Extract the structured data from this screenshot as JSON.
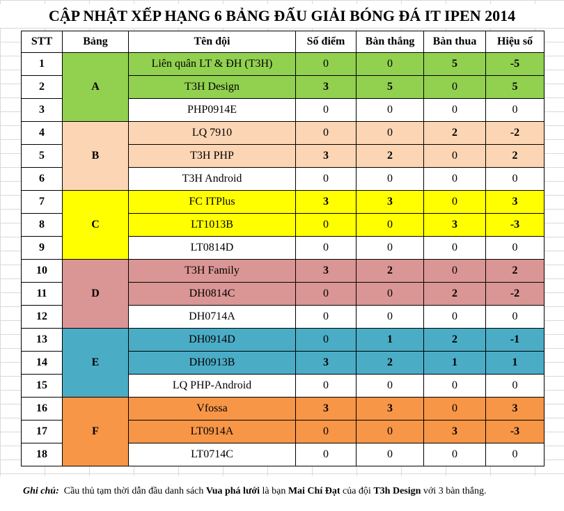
{
  "title": "CẬP NHẬT XẾP HẠNG 6 BẢNG ĐẤU GIẢI BÓNG ĐÁ IT IPEN 2014",
  "headers": [
    "STT",
    "Bảng",
    "Tên đội",
    "Số điểm",
    "Bàn thắng",
    "Bàn thua",
    "Hiệu số"
  ],
  "groups": [
    {
      "name": "A",
      "color": "#92d050",
      "rows": [
        {
          "stt": "1",
          "team": "Liên quân LT & ĐH (T3H)",
          "points": "0",
          "scored": "0",
          "conceded": "5",
          "diff": "-5"
        },
        {
          "stt": "2",
          "team": "T3H Design",
          "points": "3",
          "scored": "5",
          "conceded": "0",
          "diff": "5"
        },
        {
          "stt": "3",
          "team": "PHP0914E",
          "points": "0",
          "scored": "0",
          "conceded": "0",
          "diff": "0"
        }
      ]
    },
    {
      "name": "B",
      "color": "#fcd5b4",
      "rows": [
        {
          "stt": "4",
          "team": "LQ 7910",
          "points": "0",
          "scored": "0",
          "conceded": "2",
          "diff": "-2"
        },
        {
          "stt": "5",
          "team": "T3H PHP",
          "points": "3",
          "scored": "2",
          "conceded": "0",
          "diff": "2"
        },
        {
          "stt": "6",
          "team": "T3H Android",
          "points": "0",
          "scored": "0",
          "conceded": "0",
          "diff": "0"
        }
      ]
    },
    {
      "name": "C",
      "color": "#ffff00",
      "rows": [
        {
          "stt": "7",
          "team": "FC ITPlus",
          "points": "3",
          "scored": "3",
          "conceded": "0",
          "diff": "3"
        },
        {
          "stt": "8",
          "team": "LT1013B",
          "points": "0",
          "scored": "0",
          "conceded": "3",
          "diff": "-3"
        },
        {
          "stt": "9",
          "team": "LT0814D",
          "points": "0",
          "scored": "0",
          "conceded": "0",
          "diff": "0"
        }
      ]
    },
    {
      "name": "D",
      "color": "#da9694",
      "rows": [
        {
          "stt": "10",
          "team": "T3H Family",
          "points": "3",
          "scored": "2",
          "conceded": "0",
          "diff": "2"
        },
        {
          "stt": "11",
          "team": "DH0814C",
          "points": "0",
          "scored": "0",
          "conceded": "2",
          "diff": "-2"
        },
        {
          "stt": "12",
          "team": "DH0714A",
          "points": "0",
          "scored": "0",
          "conceded": "0",
          "diff": "0"
        }
      ]
    },
    {
      "name": "E",
      "color": "#4bacc6",
      "rows": [
        {
          "stt": "13",
          "team": "DH0914D",
          "points": "0",
          "scored": "1",
          "conceded": "2",
          "diff": "-1"
        },
        {
          "stt": "14",
          "team": "DH0913B",
          "points": "3",
          "scored": "2",
          "conceded": "1",
          "diff": "1"
        },
        {
          "stt": "15",
          "team": "LQ PHP-Android",
          "points": "0",
          "scored": "0",
          "conceded": "0",
          "diff": "0"
        }
      ]
    },
    {
      "name": "F",
      "color": "#f79646",
      "rows": [
        {
          "stt": "16",
          "team": "Vfossa",
          "points": "3",
          "scored": "3",
          "conceded": "0",
          "diff": "3"
        },
        {
          "stt": "17",
          "team": "LT0914A",
          "points": "0",
          "scored": "0",
          "conceded": "3",
          "diff": "-3"
        },
        {
          "stt": "18",
          "team": "LT0714C",
          "points": "0",
          "scored": "0",
          "conceded": "0",
          "diff": "0"
        }
      ]
    }
  ],
  "note": {
    "label": "Ghi chú:",
    "t1": "Cầu thủ tạm thời dẫn đầu danh sách",
    "b1": "Vua phá lưới",
    "t2": "là bạn",
    "b2": "Mai Chí Đạt",
    "t3": "của đội",
    "b3": "T3h Design",
    "t4": "với 3 bàn thắng."
  }
}
